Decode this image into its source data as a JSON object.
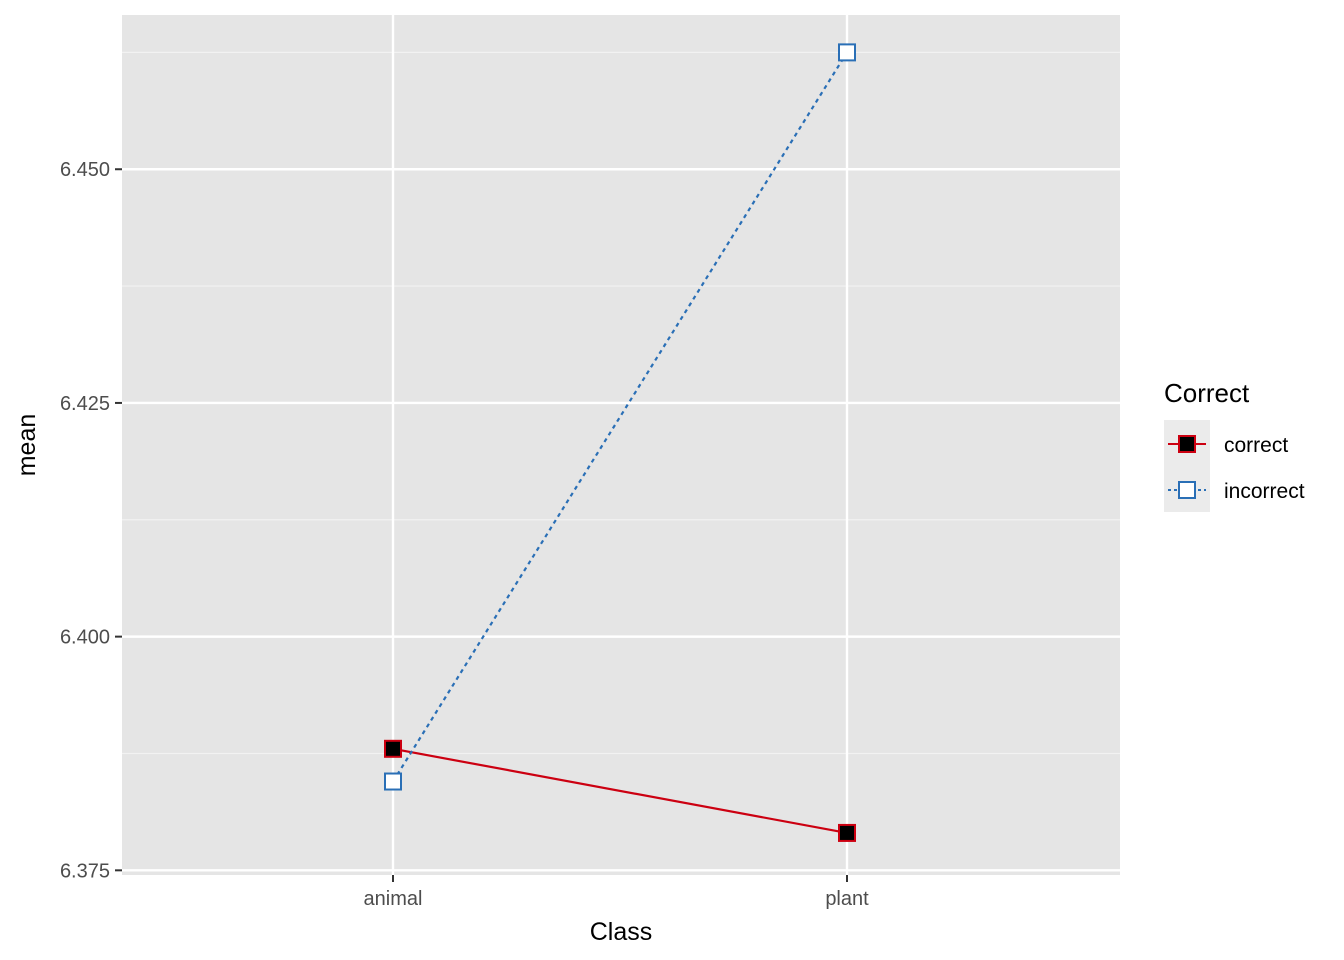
{
  "chart_data": {
    "type": "line",
    "categories": [
      "animal",
      "plant"
    ],
    "series": [
      {
        "name": "correct",
        "values": [
          6.388,
          6.379
        ],
        "color": "#cc0011",
        "marker_fill": "#000000",
        "line_style": "solid",
        "marker": "filled-square"
      },
      {
        "name": "incorrect",
        "values": [
          6.3845,
          6.4625
        ],
        "color": "#2a6fb6",
        "marker_fill": "#ffffff",
        "line_style": "dotted",
        "marker": "open-square"
      }
    ],
    "xlabel": "Class",
    "ylabel": "mean",
    "ylim": [
      6.3745,
      6.4665
    ],
    "yticks": [
      6.375,
      6.4,
      6.425,
      6.45
    ],
    "ytick_labels": [
      "6.375",
      "6.400",
      "6.425",
      "6.450"
    ],
    "legend": {
      "title": "Correct",
      "entries": [
        "correct",
        "incorrect"
      ],
      "position": "right"
    },
    "grid": true,
    "panel_background": "#e5e5e5"
  }
}
